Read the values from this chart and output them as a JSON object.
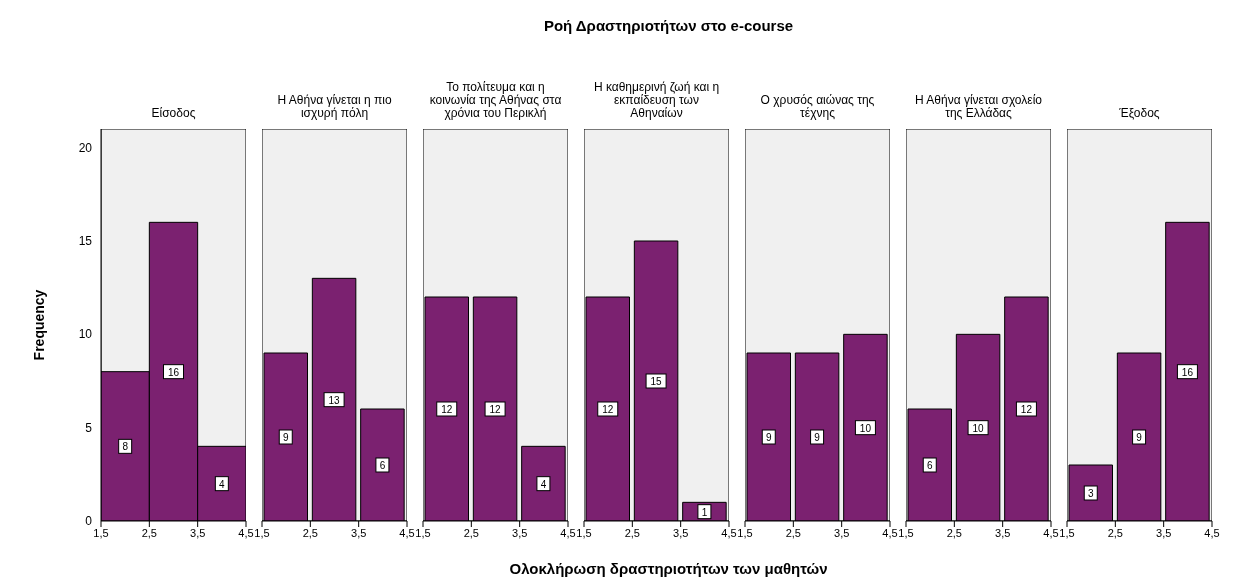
{
  "chart_data": [
    {
      "type": "histogram",
      "title": "Είσοδος",
      "ylabel": "Frequency",
      "bins": [
        1.5,
        2.5,
        3.5,
        4.5
      ],
      "values": [
        8,
        16,
        4
      ],
      "color": "#7b2170",
      "xlim": [
        1.5,
        4.5
      ],
      "xticks": [
        {
          "value": 1.5,
          "label": "1,5"
        },
        {
          "value": 2.5,
          "label": "2,5"
        },
        {
          "value": 3.5,
          "label": "3,5"
        },
        {
          "value": 4.5,
          "label": "4,5"
        }
      ],
      "ylim": [
        0,
        21
      ],
      "yticks": [
        0,
        5,
        10,
        15,
        20
      ],
      "data_labels": true
    },
    {
      "type": "histogram",
      "title": "Η Αθήνα γίνεται η πιο ισχυρή πόλη",
      "bins": [
        1.5,
        2.5,
        3.5,
        4.5
      ],
      "values": [
        9,
        13,
        6
      ],
      "color": "#7b2170",
      "xlim": [
        1.5,
        4.5
      ],
      "xticks": [
        {
          "value": 1.5,
          "label": "1,5"
        },
        {
          "value": 2.5,
          "label": "2,5"
        },
        {
          "value": 3.5,
          "label": "3,5"
        },
        {
          "value": 4.5,
          "label": "4,5"
        }
      ],
      "ylim": [
        0,
        21
      ],
      "tick_labels": "x",
      "data_labels": true
    },
    {
      "type": "histogram",
      "title": "Το πολίτευμα και η κοινωνία της Αθήνας στα χρόνια του Περικλή",
      "bins": [
        1.5,
        2.5,
        3.5,
        4.5
      ],
      "values": [
        12,
        12,
        4
      ],
      "color": "#7b2170",
      "xlim": [
        1.5,
        4.5
      ],
      "xticks": [
        {
          "value": 1.5,
          "label": "1,5"
        },
        {
          "value": 2.5,
          "label": "2,5"
        },
        {
          "value": 3.5,
          "label": "3,5"
        },
        {
          "value": 4.5,
          "label": "4,5"
        }
      ],
      "ylim": [
        0,
        21
      ],
      "tick_labels": "x",
      "data_labels": true
    },
    {
      "type": "histogram",
      "title": "Η καθημερινή ζωή και η εκπαίδευση των Αθηναίων",
      "xlabel": "Ολοκλήρωση δραστηριοτήτων των μαθητών",
      "annotations": [
        "Ροή Δραστηριοτήτων στο e-course"
      ],
      "bins": [
        1.5,
        2.5,
        3.5,
        4.5
      ],
      "values": [
        12,
        15,
        1
      ],
      "color": "#7b2170",
      "xlim": [
        1.5,
        4.5
      ],
      "xticks": [
        {
          "value": 1.5,
          "label": "1,5"
        },
        {
          "value": 2.5,
          "label": "2,5"
        },
        {
          "value": 3.5,
          "label": "3,5"
        },
        {
          "value": 4.5,
          "label": "4,5"
        }
      ],
      "ylim": [
        0,
        21
      ],
      "tick_labels": "x",
      "data_labels": true
    },
    {
      "type": "histogram",
      "title": "Ο χρυσός αιώνας της τέχνης",
      "bins": [
        1.5,
        2.5,
        3.5,
        4.5
      ],
      "values": [
        9,
        9,
        10
      ],
      "color": "#7b2170",
      "xlim": [
        1.5,
        4.5
      ],
      "xticks": [
        {
          "value": 1.5,
          "label": "1,5"
        },
        {
          "value": 2.5,
          "label": "2,5"
        },
        {
          "value": 3.5,
          "label": "3,5"
        },
        {
          "value": 4.5,
          "label": "4,5"
        }
      ],
      "ylim": [
        0,
        21
      ],
      "tick_labels": "x",
      "data_labels": true
    },
    {
      "type": "histogram",
      "title": "Η Αθήνα γίνεται σχολείο της Ελλάδας",
      "bins": [
        1.5,
        2.5,
        3.5,
        4.5
      ],
      "values": [
        6,
        10,
        12
      ],
      "color": "#7b2170",
      "xlim": [
        1.5,
        4.5
      ],
      "xticks": [
        {
          "value": 1.5,
          "label": "1,5"
        },
        {
          "value": 2.5,
          "label": "2,5"
        },
        {
          "value": 3.5,
          "label": "3,5"
        },
        {
          "value": 4.5,
          "label": "4,5"
        }
      ],
      "ylim": [
        0,
        21
      ],
      "tick_labels": "x",
      "data_labels": true
    },
    {
      "type": "histogram",
      "title": "Έξοδος",
      "bins": [
        1.5,
        2.5,
        3.5,
        4.5
      ],
      "values": [
        3,
        9,
        16
      ],
      "color": "#7b2170",
      "xlim": [
        1.5,
        4.5
      ],
      "xticks": [
        {
          "value": 1.5,
          "label": "1,5"
        },
        {
          "value": 2.5,
          "label": "2,5"
        },
        {
          "value": 3.5,
          "label": "3,5"
        },
        {
          "value": 4.5,
          "label": "4,5"
        }
      ],
      "ylim": [
        0,
        21
      ],
      "tick_labels": "x",
      "data_labels": true
    }
  ]
}
